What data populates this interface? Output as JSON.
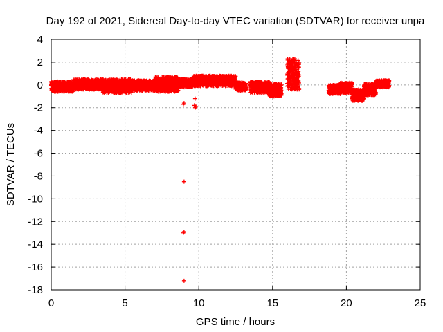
{
  "chart_data": {
    "type": "scatter",
    "title": "Day 192 of 2021, Sidereal Day-to-day VTEC variation (SDTVAR) for receiver unpa",
    "xlabel": "GPS time / hours",
    "ylabel": "SDTVAR / TECUs",
    "xlim": [
      0,
      25
    ],
    "ylim": [
      -18,
      4
    ],
    "xticks": [
      0,
      5,
      10,
      15,
      20,
      25
    ],
    "yticks": [
      4,
      2,
      0,
      -2,
      -4,
      -6,
      -8,
      -10,
      -12,
      -14,
      -16,
      -18
    ],
    "grid": true,
    "colors": {
      "series": "#ff0000",
      "grid": "#a0a0a0",
      "axis": "#000000"
    },
    "series": [
      {
        "name": "SDTVAR",
        "marker": "plus",
        "bands": [
          {
            "x_start": 0.0,
            "x_end": 1.5,
            "y_min": -0.6,
            "y_max": 0.3
          },
          {
            "x_start": 1.5,
            "x_end": 3.5,
            "y_min": -0.4,
            "y_max": 0.5
          },
          {
            "x_start": 3.5,
            "x_end": 5.5,
            "y_min": -0.7,
            "y_max": 0.5
          },
          {
            "x_start": 5.5,
            "x_end": 7.0,
            "y_min": -0.5,
            "y_max": 0.4
          },
          {
            "x_start": 7.0,
            "x_end": 8.6,
            "y_min": -0.6,
            "y_max": 0.7
          },
          {
            "x_start": 8.6,
            "x_end": 9.6,
            "y_min": -0.2,
            "y_max": 0.5
          },
          {
            "x_start": 9.6,
            "x_end": 12.5,
            "y_min": -0.1,
            "y_max": 0.8
          },
          {
            "x_start": 12.5,
            "x_end": 13.2,
            "y_min": -0.5,
            "y_max": 0.2
          },
          {
            "x_start": 13.5,
            "x_end": 14.8,
            "y_min": -0.7,
            "y_max": 0.3
          },
          {
            "x_start": 14.8,
            "x_end": 15.6,
            "y_min": -1.0,
            "y_max": 0.1
          },
          {
            "x_start": 16.0,
            "x_end": 16.8,
            "y_min": -0.4,
            "y_max": 2.3
          },
          {
            "x_start": 18.8,
            "x_end": 19.6,
            "y_min": -0.8,
            "y_max": 0.0
          },
          {
            "x_start": 19.6,
            "x_end": 20.4,
            "y_min": -0.7,
            "y_max": 0.2
          },
          {
            "x_start": 20.4,
            "x_end": 21.2,
            "y_min": -1.4,
            "y_max": -0.4
          },
          {
            "x_start": 21.2,
            "x_end": 22.0,
            "y_min": -0.9,
            "y_max": 0.1
          },
          {
            "x_start": 22.0,
            "x_end": 22.9,
            "y_min": -0.2,
            "y_max": 0.4
          }
        ],
        "outliers": [
          {
            "x": 9.0,
            "y": -1.6
          },
          {
            "x": 8.95,
            "y": -1.7
          },
          {
            "x": 9.0,
            "y": -8.5
          },
          {
            "x": 9.0,
            "y": -12.9
          },
          {
            "x": 8.95,
            "y": -13.0
          },
          {
            "x": 9.0,
            "y": -17.2
          },
          {
            "x": 9.75,
            "y": -1.2
          },
          {
            "x": 9.7,
            "y": -1.8
          },
          {
            "x": 9.75,
            "y": -2.0
          },
          {
            "x": 9.8,
            "y": -1.9
          },
          {
            "x": 16.35,
            "y": 1.0
          },
          {
            "x": 16.5,
            "y": 1.6
          }
        ]
      }
    ]
  }
}
